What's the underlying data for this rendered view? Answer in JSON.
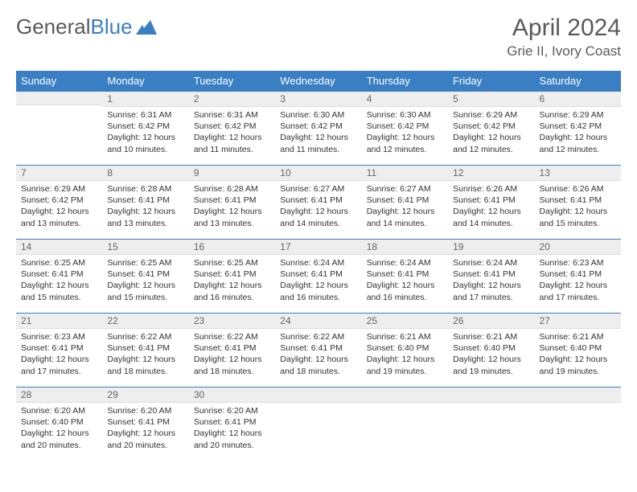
{
  "logo": {
    "text1": "General",
    "text2": "Blue"
  },
  "title": "April 2024",
  "location": "Grie II, Ivory Coast",
  "colors": {
    "header_bg": "#3a7fc4",
    "header_text": "#ffffff",
    "daynum_bg": "#eeeeee",
    "border": "#3a7fc4"
  },
  "weekdays": [
    "Sunday",
    "Monday",
    "Tuesday",
    "Wednesday",
    "Thursday",
    "Friday",
    "Saturday"
  ],
  "weeks": [
    [
      null,
      {
        "n": "1",
        "sr": "6:31 AM",
        "ss": "6:42 PM",
        "dl": "12 hours and 10 minutes."
      },
      {
        "n": "2",
        "sr": "6:31 AM",
        "ss": "6:42 PM",
        "dl": "12 hours and 11 minutes."
      },
      {
        "n": "3",
        "sr": "6:30 AM",
        "ss": "6:42 PM",
        "dl": "12 hours and 11 minutes."
      },
      {
        "n": "4",
        "sr": "6:30 AM",
        "ss": "6:42 PM",
        "dl": "12 hours and 12 minutes."
      },
      {
        "n": "5",
        "sr": "6:29 AM",
        "ss": "6:42 PM",
        "dl": "12 hours and 12 minutes."
      },
      {
        "n": "6",
        "sr": "6:29 AM",
        "ss": "6:42 PM",
        "dl": "12 hours and 12 minutes."
      }
    ],
    [
      {
        "n": "7",
        "sr": "6:29 AM",
        "ss": "6:42 PM",
        "dl": "12 hours and 13 minutes."
      },
      {
        "n": "8",
        "sr": "6:28 AM",
        "ss": "6:41 PM",
        "dl": "12 hours and 13 minutes."
      },
      {
        "n": "9",
        "sr": "6:28 AM",
        "ss": "6:41 PM",
        "dl": "12 hours and 13 minutes."
      },
      {
        "n": "10",
        "sr": "6:27 AM",
        "ss": "6:41 PM",
        "dl": "12 hours and 14 minutes."
      },
      {
        "n": "11",
        "sr": "6:27 AM",
        "ss": "6:41 PM",
        "dl": "12 hours and 14 minutes."
      },
      {
        "n": "12",
        "sr": "6:26 AM",
        "ss": "6:41 PM",
        "dl": "12 hours and 14 minutes."
      },
      {
        "n": "13",
        "sr": "6:26 AM",
        "ss": "6:41 PM",
        "dl": "12 hours and 15 minutes."
      }
    ],
    [
      {
        "n": "14",
        "sr": "6:25 AM",
        "ss": "6:41 PM",
        "dl": "12 hours and 15 minutes."
      },
      {
        "n": "15",
        "sr": "6:25 AM",
        "ss": "6:41 PM",
        "dl": "12 hours and 15 minutes."
      },
      {
        "n": "16",
        "sr": "6:25 AM",
        "ss": "6:41 PM",
        "dl": "12 hours and 16 minutes."
      },
      {
        "n": "17",
        "sr": "6:24 AM",
        "ss": "6:41 PM",
        "dl": "12 hours and 16 minutes."
      },
      {
        "n": "18",
        "sr": "6:24 AM",
        "ss": "6:41 PM",
        "dl": "12 hours and 16 minutes."
      },
      {
        "n": "19",
        "sr": "6:24 AM",
        "ss": "6:41 PM",
        "dl": "12 hours and 17 minutes."
      },
      {
        "n": "20",
        "sr": "6:23 AM",
        "ss": "6:41 PM",
        "dl": "12 hours and 17 minutes."
      }
    ],
    [
      {
        "n": "21",
        "sr": "6:23 AM",
        "ss": "6:41 PM",
        "dl": "12 hours and 17 minutes."
      },
      {
        "n": "22",
        "sr": "6:22 AM",
        "ss": "6:41 PM",
        "dl": "12 hours and 18 minutes."
      },
      {
        "n": "23",
        "sr": "6:22 AM",
        "ss": "6:41 PM",
        "dl": "12 hours and 18 minutes."
      },
      {
        "n": "24",
        "sr": "6:22 AM",
        "ss": "6:41 PM",
        "dl": "12 hours and 18 minutes."
      },
      {
        "n": "25",
        "sr": "6:21 AM",
        "ss": "6:40 PM",
        "dl": "12 hours and 19 minutes."
      },
      {
        "n": "26",
        "sr": "6:21 AM",
        "ss": "6:40 PM",
        "dl": "12 hours and 19 minutes."
      },
      {
        "n": "27",
        "sr": "6:21 AM",
        "ss": "6:40 PM",
        "dl": "12 hours and 19 minutes."
      }
    ],
    [
      {
        "n": "28",
        "sr": "6:20 AM",
        "ss": "6:40 PM",
        "dl": "12 hours and 20 minutes."
      },
      {
        "n": "29",
        "sr": "6:20 AM",
        "ss": "6:41 PM",
        "dl": "12 hours and 20 minutes."
      },
      {
        "n": "30",
        "sr": "6:20 AM",
        "ss": "6:41 PM",
        "dl": "12 hours and 20 minutes."
      },
      null,
      null,
      null,
      null
    ]
  ],
  "labels": {
    "sunrise": "Sunrise:",
    "sunset": "Sunset:",
    "daylight": "Daylight:"
  }
}
